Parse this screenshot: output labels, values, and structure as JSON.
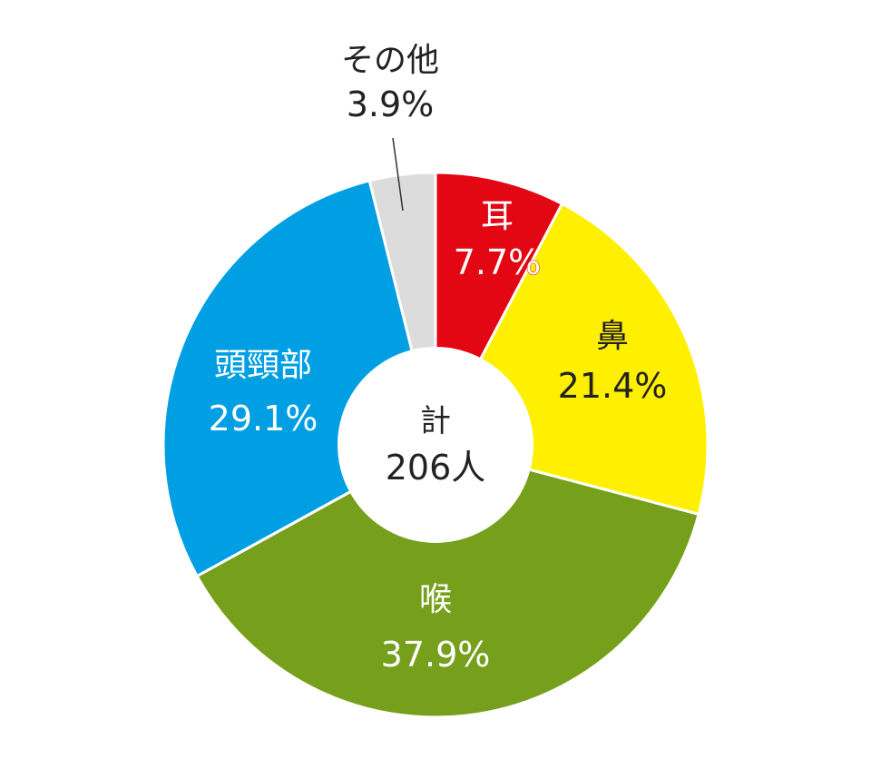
{
  "chart_data": {
    "type": "pie",
    "donut": true,
    "center_label": {
      "title": "計",
      "value": "206人"
    },
    "slices": [
      {
        "name": "耳",
        "value": 7.7,
        "label": "7.7%",
        "color": "#e30613",
        "text_color": "#ffffff",
        "outline": "#e30613"
      },
      {
        "name": "鼻",
        "value": 21.4,
        "label": "21.4%",
        "color": "#ffef00",
        "text_color": "#222222",
        "outline": ""
      },
      {
        "name": "喉",
        "value": 37.9,
        "label": "37.9%",
        "color": "#76a01c",
        "text_color": "#ffffff",
        "outline": ""
      },
      {
        "name": "頭頸部",
        "value": 29.1,
        "label": "29.1%",
        "color": "#009fe3",
        "text_color": "#ffffff",
        "outline": ""
      },
      {
        "name": "その他",
        "value": 3.9,
        "label": "3.9%",
        "color": "#dcdcdc",
        "text_color": "#222222",
        "outline": ""
      }
    ]
  }
}
